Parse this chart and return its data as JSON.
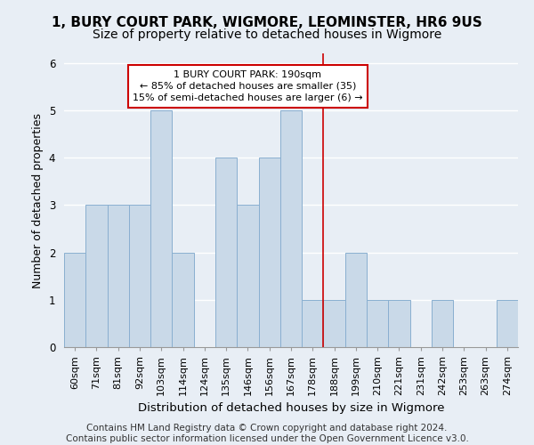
{
  "title": "1, BURY COURT PARK, WIGMORE, LEOMINSTER, HR6 9US",
  "subtitle": "Size of property relative to detached houses in Wigmore",
  "xlabel": "Distribution of detached houses by size in Wigmore",
  "ylabel": "Number of detached properties",
  "footer_line1": "Contains HM Land Registry data © Crown copyright and database right 2024.",
  "footer_line2": "Contains public sector information licensed under the Open Government Licence v3.0.",
  "categories": [
    "60sqm",
    "71sqm",
    "81sqm",
    "92sqm",
    "103sqm",
    "114sqm",
    "124sqm",
    "135sqm",
    "146sqm",
    "156sqm",
    "167sqm",
    "178sqm",
    "188sqm",
    "199sqm",
    "210sqm",
    "221sqm",
    "231sqm",
    "242sqm",
    "253sqm",
    "263sqm",
    "274sqm"
  ],
  "values": [
    2,
    3,
    3,
    3,
    5,
    2,
    0,
    4,
    3,
    4,
    5,
    1,
    1,
    2,
    1,
    1,
    0,
    1,
    0,
    0,
    1
  ],
  "bar_color": "#c9d9e8",
  "bar_edge_color": "#89afd0",
  "vline_x_index": 11.5,
  "vline_color": "#cc0000",
  "annotation_text": "1 BURY COURT PARK: 190sqm\n← 85% of detached houses are smaller (35)\n15% of semi-detached houses are larger (6) →",
  "annotation_box_facecolor": "#ffffff",
  "annotation_box_edgecolor": "#cc0000",
  "ylim": [
    0,
    6.2
  ],
  "yticks": [
    0,
    1,
    2,
    3,
    4,
    5,
    6
  ],
  "background_color": "#e8eef5",
  "plot_bg_color": "#e8eef5",
  "grid_color": "#ffffff",
  "title_fontsize": 11,
  "subtitle_fontsize": 10,
  "axis_label_fontsize": 9.5,
  "tick_fontsize": 8,
  "footer_fontsize": 7.5,
  "ylabel_fontsize": 9
}
